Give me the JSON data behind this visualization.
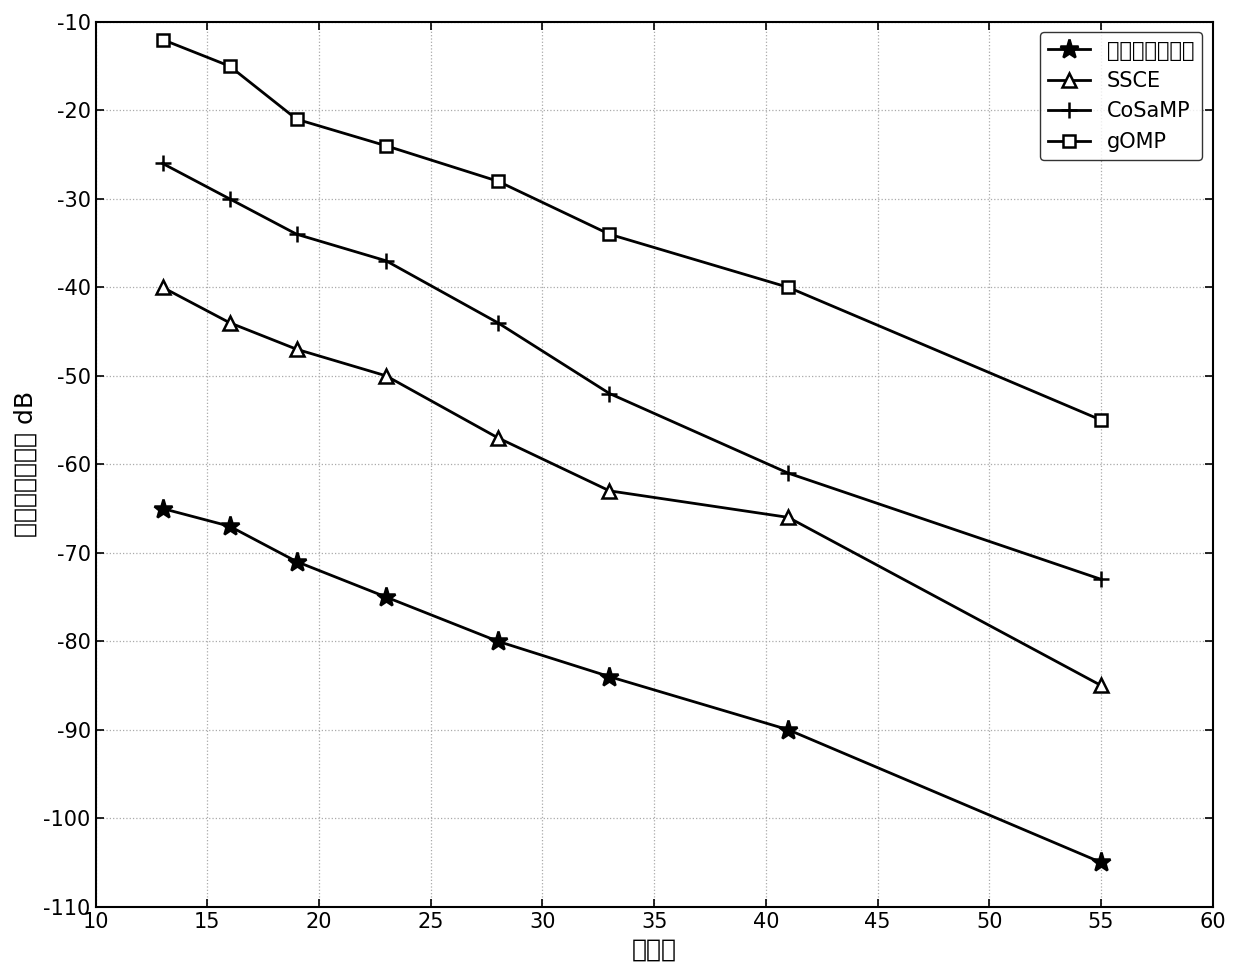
{
  "x": [
    13,
    16,
    19,
    23,
    28,
    33,
    41,
    55
  ],
  "series_order": [
    "本发明所述算法",
    "SSCE",
    "CoSaMP",
    "gOMP"
  ],
  "series": {
    "本发明所述算法": {
      "y": [
        -65,
        -67,
        -71,
        -75,
        -80,
        -84,
        -90,
        -105
      ],
      "marker": "*",
      "markersize": 14,
      "markerfacecolor": "black",
      "label": "本发明所述算法"
    },
    "SSCE": {
      "y": [
        -40,
        -44,
        -47,
        -50,
        -57,
        -63,
        -66,
        -85
      ],
      "marker": "^",
      "markersize": 10,
      "markerfacecolor": "white",
      "label": "SSCE"
    },
    "CoSaMP": {
      "y": [
        -26,
        -30,
        -34,
        -37,
        -44,
        -52,
        -61,
        -73
      ],
      "marker": "+",
      "markersize": 12,
      "markerfacecolor": "black",
      "label": "CoSaMP"
    },
    "gOMP": {
      "y": [
        -12,
        -15,
        -21,
        -24,
        -28,
        -34,
        -40,
        -55
      ],
      "marker": "s",
      "markersize": 9,
      "markerfacecolor": "white",
      "label": "gOMP"
    }
  },
  "xlabel": "信噪比",
  "ylabel": "归一化均方误差 dB",
  "xlim": [
    10,
    60
  ],
  "ylim": [
    -110,
    -10
  ],
  "xticks": [
    10,
    15,
    20,
    25,
    30,
    35,
    40,
    45,
    50,
    55,
    60
  ],
  "yticks": [
    -110,
    -100,
    -90,
    -80,
    -70,
    -60,
    -50,
    -40,
    -30,
    -20,
    -10
  ],
  "line_color": "black",
  "line_width": 2.0,
  "grid_color": "#aaaaaa",
  "legend_loc": "upper right",
  "font_size_label": 18,
  "font_size_tick": 15,
  "font_size_legend": 15
}
